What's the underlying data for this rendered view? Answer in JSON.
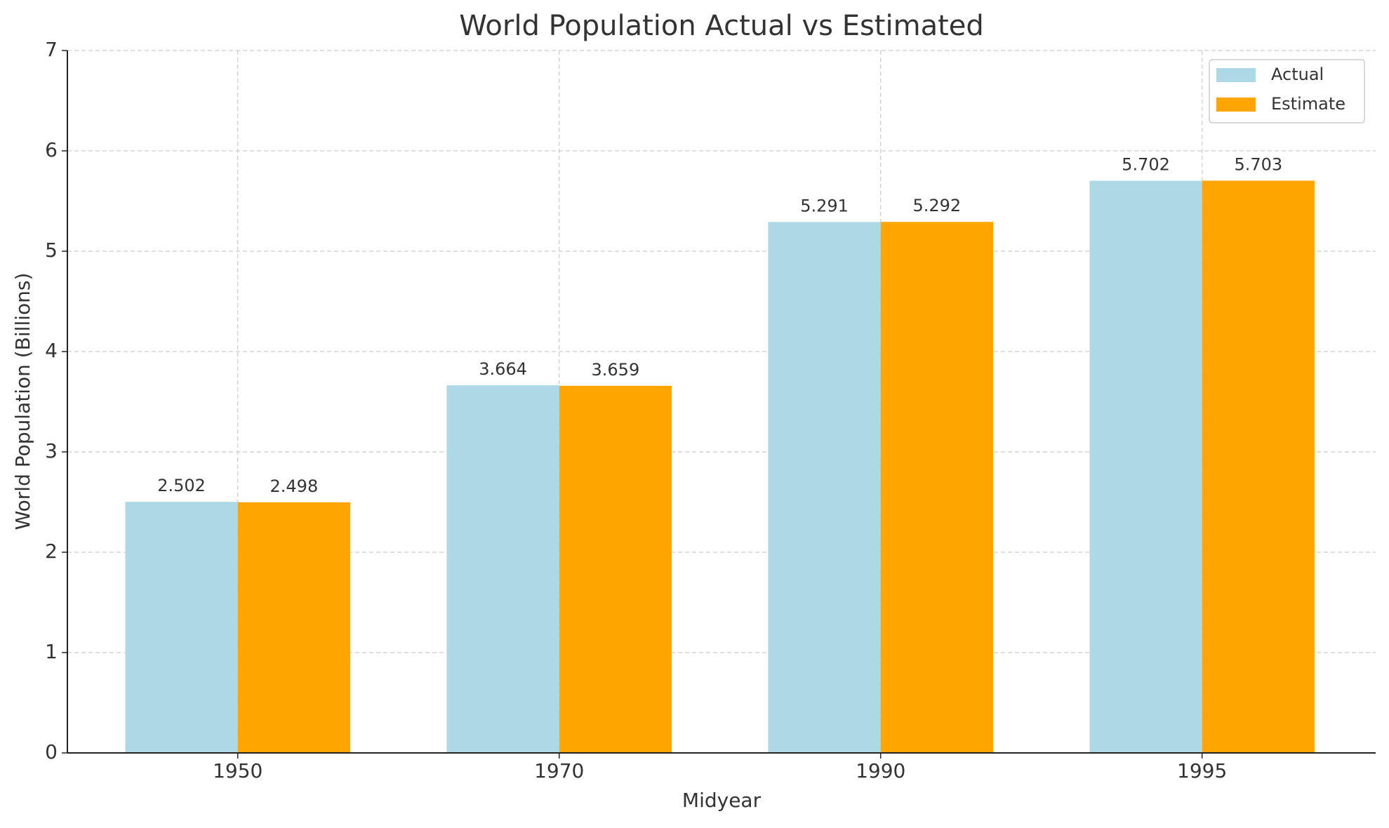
{
  "chart_data": {
    "type": "bar",
    "title": "World Population Actual vs Estimated",
    "x_label": "Midyear",
    "y_label": "World Population (Billions)",
    "categories": [
      "1950",
      "1970",
      "1990",
      "1995"
    ],
    "series": [
      {
        "name": "Actual",
        "color": "#add8e6",
        "values": [
          2.502,
          3.664,
          5.291,
          5.702
        ]
      },
      {
        "name": "Estimate",
        "color": "#ffa500",
        "values": [
          2.498,
          3.659,
          5.292,
          5.703
        ]
      }
    ],
    "ylim": [
      0,
      7
    ],
    "yticks": [
      0,
      1,
      2,
      3,
      4,
      5,
      6,
      7
    ],
    "grid": true,
    "legend": "upper right"
  }
}
